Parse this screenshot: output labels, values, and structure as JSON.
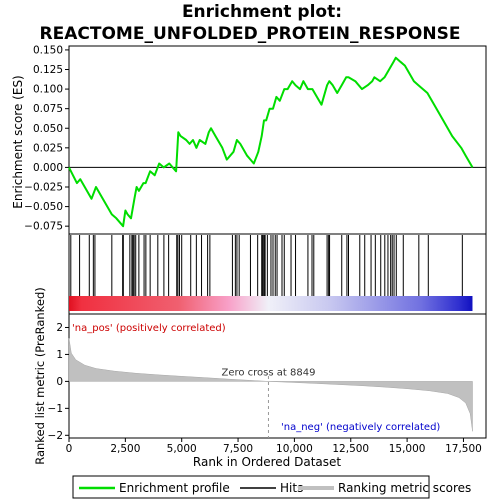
{
  "title_line1": "Enrichment plot:",
  "title_line2": "REACTOME_UNFOLDED_PROTEIN_RESPONSE",
  "colors": {
    "es_line": "#00dd00",
    "hits": "#000000",
    "metric_fill": "#c0c0c0",
    "pos_label": "#cc0000",
    "neg_label": "#0000cc",
    "zero_cross_line": "#999999"
  },
  "chart_data": [
    {
      "type": "line",
      "panel": "enrichment-profile",
      "ylabel": "Enrichment score (ES)",
      "ylim": [
        -0.085,
        0.155
      ],
      "yticks": [
        -0.075,
        -0.05,
        -0.025,
        0.0,
        0.025,
        0.05,
        0.075,
        0.1,
        0.125,
        0.15
      ],
      "ytick_labels": [
        "−0.075",
        "−0.050",
        "−0.025",
        "0.000",
        "0.025",
        "0.050",
        "0.075",
        "0.100",
        "0.125",
        "0.150"
      ],
      "series": [
        {
          "name": "Enrichment profile",
          "x": [
            0,
            350,
            500,
            1000,
            1200,
            1900,
            2100,
            2400,
            2500,
            2600,
            2750,
            2900,
            3000,
            3100,
            3300,
            3400,
            3600,
            3800,
            4000,
            4200,
            4450,
            4750,
            4850,
            4950,
            5200,
            5350,
            5500,
            5650,
            5800,
            6050,
            6200,
            6300,
            6500,
            6800,
            7000,
            7300,
            7450,
            7600,
            7900,
            8050,
            8200,
            8400,
            8550,
            8650,
            8750,
            8900,
            9050,
            9200,
            9350,
            9550,
            9700,
            9900,
            10050,
            10250,
            10400,
            10600,
            10800,
            11000,
            11200,
            11450,
            11550,
            11700,
            11900,
            12100,
            12300,
            12400,
            12700,
            13000,
            13250,
            13450,
            13550,
            13800,
            14000,
            14200,
            14400,
            14500,
            14700,
            14900,
            15300,
            15500,
            15700,
            15900,
            16200,
            16600,
            17000,
            17400,
            17600,
            17900
          ],
          "y": [
            0.0,
            -0.02,
            -0.015,
            -0.04,
            -0.025,
            -0.06,
            -0.065,
            -0.075,
            -0.055,
            -0.06,
            -0.065,
            -0.04,
            -0.025,
            -0.03,
            -0.02,
            -0.02,
            -0.005,
            -0.01,
            0.005,
            0.0,
            0.005,
            -0.005,
            0.045,
            0.04,
            0.035,
            0.03,
            0.035,
            0.025,
            0.035,
            0.03,
            0.045,
            0.05,
            0.04,
            0.025,
            0.01,
            0.02,
            0.035,
            0.03,
            0.015,
            0.01,
            0.005,
            0.02,
            0.04,
            0.06,
            0.06,
            0.075,
            0.075,
            0.09,
            0.085,
            0.1,
            0.1,
            0.11,
            0.105,
            0.1,
            0.11,
            0.1,
            0.1,
            0.09,
            0.08,
            0.105,
            0.11,
            0.105,
            0.095,
            0.105,
            0.115,
            0.115,
            0.11,
            0.1,
            0.105,
            0.11,
            0.115,
            0.11,
            0.115,
            0.125,
            0.135,
            0.14,
            0.135,
            0.13,
            0.11,
            0.105,
            0.1,
            0.095,
            0.08,
            0.06,
            0.04,
            0.025,
            0.015,
            0.0
          ]
        }
      ],
      "hits": [
        80,
        470,
        900,
        1080,
        1150,
        1900,
        2380,
        2410,
        2700,
        2790,
        2840,
        2890,
        2960,
        3100,
        3330,
        3410,
        3600,
        3940,
        4210,
        4420,
        4780,
        4830,
        4900,
        5000,
        5400,
        5650,
        5880,
        6150,
        6250,
        7250,
        7380,
        7450,
        7550,
        8050,
        8370,
        8550,
        8590,
        8610,
        8660,
        8700,
        8800,
        8960,
        9050,
        9150,
        9230,
        9450,
        9550,
        9850,
        10050,
        10600,
        10780,
        10860,
        11450,
        11520,
        11560,
        12100,
        12330,
        12400,
        12900,
        13120,
        13400,
        13590,
        13830,
        14010,
        14150,
        14270,
        14340,
        14420,
        14520,
        14830,
        15520,
        15940,
        17450
      ]
    },
    {
      "type": "heatmap",
      "panel": "rank-color-bar",
      "description_from_left": "red (positively correlated) to pink, white near the zero cross, to light blue and dark blue (negatively correlated)"
    },
    {
      "type": "area",
      "panel": "ranked-list-metric",
      "xlabel": "Rank in Ordered Dataset",
      "ylabel": "Ranked list metric (PreRanked)",
      "xlim": [
        0,
        18500
      ],
      "xticks": [
        0,
        2500,
        5000,
        7500,
        10000,
        12500,
        15000,
        17500
      ],
      "xtick_labels": [
        "0",
        "2,500",
        "5,000",
        "7,500",
        "10,000",
        "12,500",
        "15,000",
        "17,500"
      ],
      "ylim": [
        -2.1,
        2.5
      ],
      "yticks": [
        -2,
        -1,
        0,
        1,
        2
      ],
      "ytick_labels": [
        "−2",
        "−1",
        "0",
        "1",
        "2"
      ],
      "x": [
        0,
        100,
        300,
        700,
        1200,
        2000,
        3000,
        4000,
        5000,
        6000,
        7000,
        8000,
        8849,
        10000,
        11000,
        12000,
        13000,
        14000,
        15000,
        16000,
        16800,
        17300,
        17600,
        17800,
        17900
      ],
      "values": [
        1.6,
        1.05,
        0.8,
        0.6,
        0.48,
        0.38,
        0.3,
        0.24,
        0.19,
        0.14,
        0.09,
        0.04,
        0.0,
        -0.04,
        -0.08,
        -0.12,
        -0.16,
        -0.21,
        -0.27,
        -0.35,
        -0.45,
        -0.6,
        -0.8,
        -1.2,
        -1.85
      ],
      "zero_cross_rank": 8849,
      "zero_cross_label": "Zero cross at 8849",
      "pos_label": "'na_pos' (positively correlated)",
      "neg_label": "'na_neg' (negatively correlated)"
    }
  ],
  "legend": {
    "items": [
      {
        "label": "Enrichment profile"
      },
      {
        "label": "Hits"
      },
      {
        "label": "Ranking metric scores"
      }
    ]
  }
}
